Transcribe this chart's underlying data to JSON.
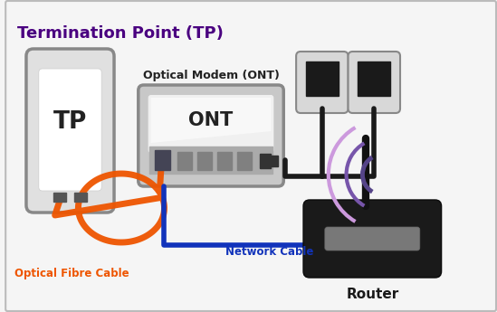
{
  "title": "Termination Point (TP)",
  "title_color": "#4a0080",
  "title_fontsize": 13,
  "bg_color": "#f5f5f5",
  "border_color": "#bbbbbb",
  "tp_label": "TP",
  "ont_label": "ONT",
  "ont_title": "Optical Modem (ONT)",
  "router_label": "Router",
  "fiber_label": "Optical Fibre Cable",
  "network_label": "Network Cable",
  "fiber_color": "#ee5500",
  "network_color": "#1133bb",
  "wifi_color_dark": "#554488",
  "wifi_color_light": "#aa88cc",
  "router_bg": "#1a1a1a",
  "tp_border": "#888888",
  "tp_fill": "#e0e0e0",
  "ont_border": "#888888",
  "ont_fill": "#c8c8c8",
  "ont_top_fill": "#e8e8e8",
  "plug_border": "#888888",
  "plug_fill": "#d8d8d8",
  "plug_inner": "#1a1a1a",
  "port_dark": "#444444",
  "port_mid": "#888888"
}
